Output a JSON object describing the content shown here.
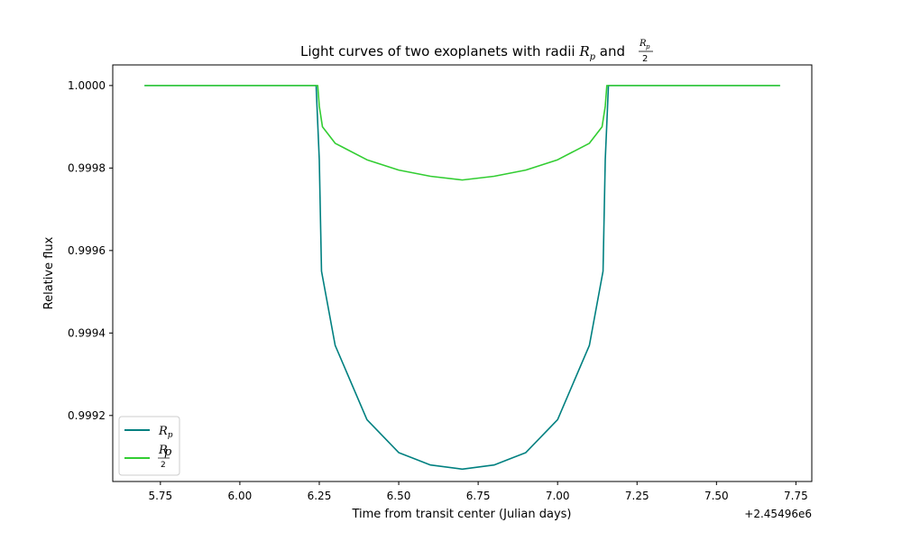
{
  "chart_data": {
    "type": "line",
    "title": "Light curves of two exoplanets with radii R_p and R_p/2",
    "title_parts": {
      "prefix": "Light curves of two exoplanets with radii ",
      "r_symbol": "R",
      "p_subscript": "p",
      "and_text": " and ",
      "denominator": "2"
    },
    "xlabel": "Time from transit center (Julian days)",
    "ylabel": "Relative flux",
    "x_offset_label": "+2.45496e6",
    "x_offset": 2454960,
    "xlim": [
      2454965.6,
      2454967.8
    ],
    "ylim": [
      0.99904,
      1.00005
    ],
    "xticks": [
      2454965.75,
      2454966.0,
      2454966.25,
      2454966.5,
      2454966.75,
      2454967.0,
      2454967.25,
      2454967.5,
      2454967.75
    ],
    "xtick_labels": [
      "5.75",
      "6.00",
      "6.25",
      "6.50",
      "6.75",
      "7.00",
      "7.25",
      "7.50",
      "7.75"
    ],
    "yticks": [
      0.9992,
      0.9994,
      0.9996,
      0.9998,
      1.0
    ],
    "ytick_labels": [
      "0.9992",
      "0.9994",
      "0.9996",
      "0.9998",
      "1.0000"
    ],
    "grid": false,
    "legend_position": "lower-left",
    "series": [
      {
        "name": "R_p",
        "legend_label": {
          "r": "R",
          "sub": "p",
          "fraction": false
        },
        "color": "#008080",
        "x": [
          2454965.7,
          2454966.24,
          2454966.25,
          2454966.257,
          2454966.3,
          2454966.4,
          2454966.5,
          2454966.6,
          2454966.7,
          2454966.8,
          2454966.9,
          2454967.0,
          2454967.1,
          2454967.143,
          2454967.15,
          2454967.16,
          2454967.7
        ],
        "values": [
          1.0,
          1.0,
          0.99982,
          0.99955,
          0.99937,
          0.99919,
          0.99911,
          0.99908,
          0.99907,
          0.99908,
          0.99911,
          0.99919,
          0.99937,
          0.99955,
          0.99982,
          1.0,
          1.0
        ]
      },
      {
        "name": "R_p/2",
        "legend_label": {
          "r": "R",
          "sub": "p",
          "fraction": true,
          "denominator": "2"
        },
        "color": "#32cd32",
        "x": [
          2454965.7,
          2454966.245,
          2454966.25,
          2454966.26,
          2454966.3,
          2454966.4,
          2454966.5,
          2454966.6,
          2454966.7,
          2454966.8,
          2454966.9,
          2454967.0,
          2454967.1,
          2454967.14,
          2454967.15,
          2454967.155,
          2454967.7
        ],
        "values": [
          1.0,
          1.0,
          0.99995,
          0.9999,
          0.99986,
          0.99982,
          0.999795,
          0.99978,
          0.999771,
          0.99978,
          0.999795,
          0.99982,
          0.99986,
          0.9999,
          0.99995,
          1.0,
          1.0
        ]
      }
    ]
  }
}
